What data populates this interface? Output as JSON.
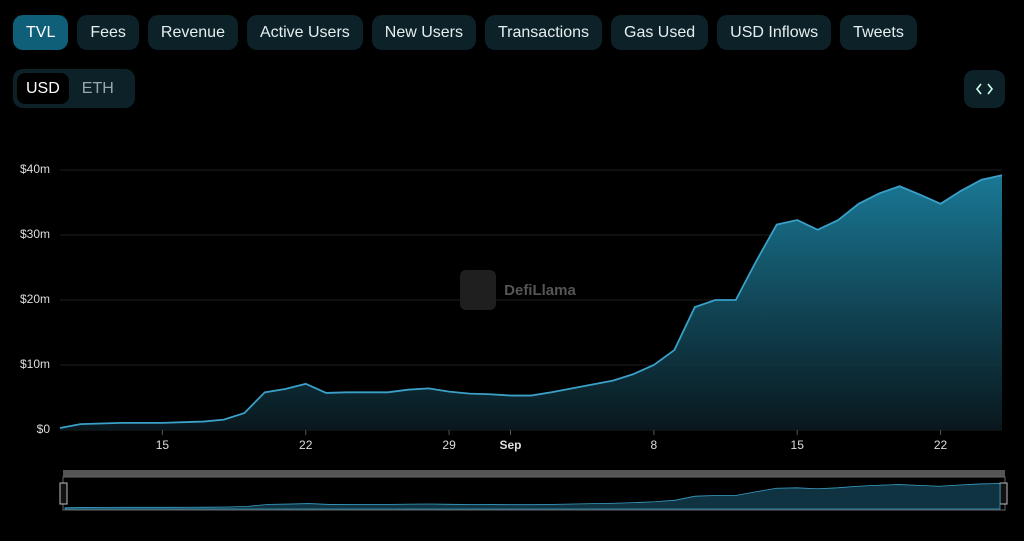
{
  "tabs": [
    "TVL",
    "Fees",
    "Revenue",
    "Active Users",
    "New Users",
    "Transactions",
    "Gas Used",
    "USD Inflows",
    "Tweets"
  ],
  "active_tab": "TVL",
  "currency_toggle": [
    "USD",
    "ETH"
  ],
  "active_currency": "USD",
  "watermark": "DefiLlama",
  "chart_data": {
    "type": "area",
    "x": [
      10,
      11,
      12,
      13,
      14,
      15,
      16,
      17,
      18,
      19,
      20,
      21,
      22,
      23,
      24,
      25,
      26,
      27,
      28,
      29,
      30,
      31,
      32,
      33,
      34,
      35,
      36,
      37,
      38,
      39,
      40,
      41,
      42,
      43,
      44,
      45,
      46,
      47,
      48,
      49,
      50,
      51,
      52,
      53,
      54,
      55,
      56
    ],
    "series": [
      {
        "name": "TVL",
        "color": "#3aa0c8",
        "values": [
          0.3,
          0.9,
          1.0,
          1.1,
          1.1,
          1.1,
          1.2,
          1.3,
          1.6,
          2.6,
          5.8,
          6.3,
          7.1,
          5.7,
          5.8,
          5.8,
          5.8,
          6.2,
          6.4,
          5.9,
          5.6,
          5.5,
          5.3,
          5.3,
          5.8,
          6.4,
          7.0,
          7.6,
          8.6,
          10.0,
          12.3,
          18.9,
          20.0,
          20.0,
          26.0,
          31.6,
          32.3,
          30.8,
          32.3,
          34.8,
          36.4,
          37.5,
          36.2,
          34.8,
          36.8,
          38.5,
          39.2
        ]
      }
    ],
    "xlim": [
      10,
      56
    ],
    "xticks": [
      15,
      22,
      29,
      {
        "value": 32,
        "label": "Sep"
      },
      {
        "value": 39,
        "label": "8"
      },
      {
        "value": 46,
        "label": "15"
      },
      {
        "value": 53,
        "label": "22"
      }
    ],
    "ylim": [
      0,
      40
    ],
    "yticks": [
      {
        "value": 0,
        "label": "$0"
      },
      {
        "value": 10,
        "label": "$10m"
      },
      {
        "value": 20,
        "label": "$20m"
      },
      {
        "value": 30,
        "label": "$30m"
      },
      {
        "value": 40,
        "label": "$40m"
      }
    ],
    "grid": true
  }
}
